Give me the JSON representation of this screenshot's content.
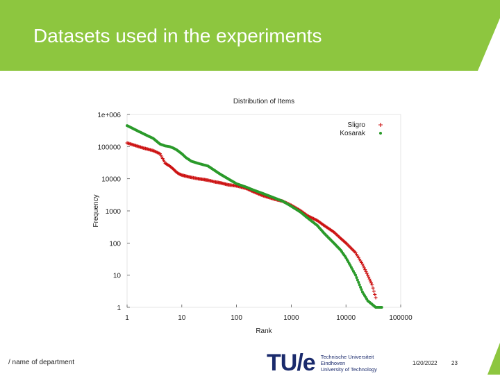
{
  "slide": {
    "title": "Datasets used in the experiments",
    "footer_department": "/ name of department",
    "date": "1/20/2022",
    "page_number": "23",
    "brand_color": "#8dc63f",
    "logo": {
      "mark": "TU/e",
      "lines": [
        "Technische Universiteit",
        "Eindhoven",
        "University of Technology"
      ]
    }
  },
  "chart_data": {
    "type": "scatter",
    "title": "Distribution of Items",
    "xlabel": "Rank",
    "ylabel": "Frequency",
    "xscale": "log",
    "yscale": "log",
    "xlim": [
      1,
      100000
    ],
    "ylim": [
      1,
      1000000
    ],
    "xticks": [
      "1",
      "10",
      "100",
      "1000",
      "10000",
      "100000"
    ],
    "yticks": [
      "1",
      "10",
      "100",
      "1000",
      "10000",
      "100000",
      "1e+006"
    ],
    "legend_position": "top-right",
    "grid": false,
    "series": [
      {
        "name": "Sligro",
        "color": "#cc1111",
        "marker": "plus",
        "points": [
          [
            1,
            130000
          ],
          [
            2,
            90000
          ],
          [
            3,
            75000
          ],
          [
            4,
            60000
          ],
          [
            5,
            30000
          ],
          [
            6,
            25000
          ],
          [
            7,
            20000
          ],
          [
            8,
            16000
          ],
          [
            9,
            14000
          ],
          [
            10,
            13000
          ],
          [
            12,
            12000
          ],
          [
            15,
            11000
          ],
          [
            20,
            10000
          ],
          [
            25,
            9500
          ],
          [
            30,
            9000
          ],
          [
            40,
            8000
          ],
          [
            50,
            7500
          ],
          [
            70,
            6500
          ],
          [
            100,
            6000
          ],
          [
            150,
            5000
          ],
          [
            200,
            4000
          ],
          [
            300,
            3000
          ],
          [
            500,
            2300
          ],
          [
            700,
            2000
          ],
          [
            1000,
            1500
          ],
          [
            1500,
            1000
          ],
          [
            2000,
            700
          ],
          [
            3000,
            500
          ],
          [
            4000,
            350
          ],
          [
            6000,
            220
          ],
          [
            8000,
            140
          ],
          [
            10000,
            100
          ],
          [
            15000,
            50
          ],
          [
            20000,
            22
          ],
          [
            25000,
            10
          ],
          [
            30000,
            5
          ],
          [
            35000,
            2
          ]
        ]
      },
      {
        "name": "Kosarak",
        "color": "#2a9a2a",
        "marker": "circle",
        "points": [
          [
            1,
            450000
          ],
          [
            2,
            250000
          ],
          [
            3,
            180000
          ],
          [
            4,
            120000
          ],
          [
            5,
            105000
          ],
          [
            6,
            100000
          ],
          [
            7,
            90000
          ],
          [
            8,
            80000
          ],
          [
            10,
            60000
          ],
          [
            12,
            45000
          ],
          [
            15,
            35000
          ],
          [
            20,
            30000
          ],
          [
            30,
            25000
          ],
          [
            50,
            14000
          ],
          [
            70,
            10000
          ],
          [
            100,
            7000
          ],
          [
            150,
            5500
          ],
          [
            200,
            4500
          ],
          [
            300,
            3500
          ],
          [
            500,
            2500
          ],
          [
            700,
            2000
          ],
          [
            1000,
            1400
          ],
          [
            1500,
            900
          ],
          [
            2000,
            600
          ],
          [
            3000,
            350
          ],
          [
            4000,
            200
          ],
          [
            6000,
            100
          ],
          [
            8000,
            60
          ],
          [
            10000,
            35
          ],
          [
            15000,
            10
          ],
          [
            20000,
            3
          ],
          [
            25000,
            1.6
          ],
          [
            35000,
            1
          ],
          [
            45000,
            1
          ]
        ]
      }
    ]
  }
}
